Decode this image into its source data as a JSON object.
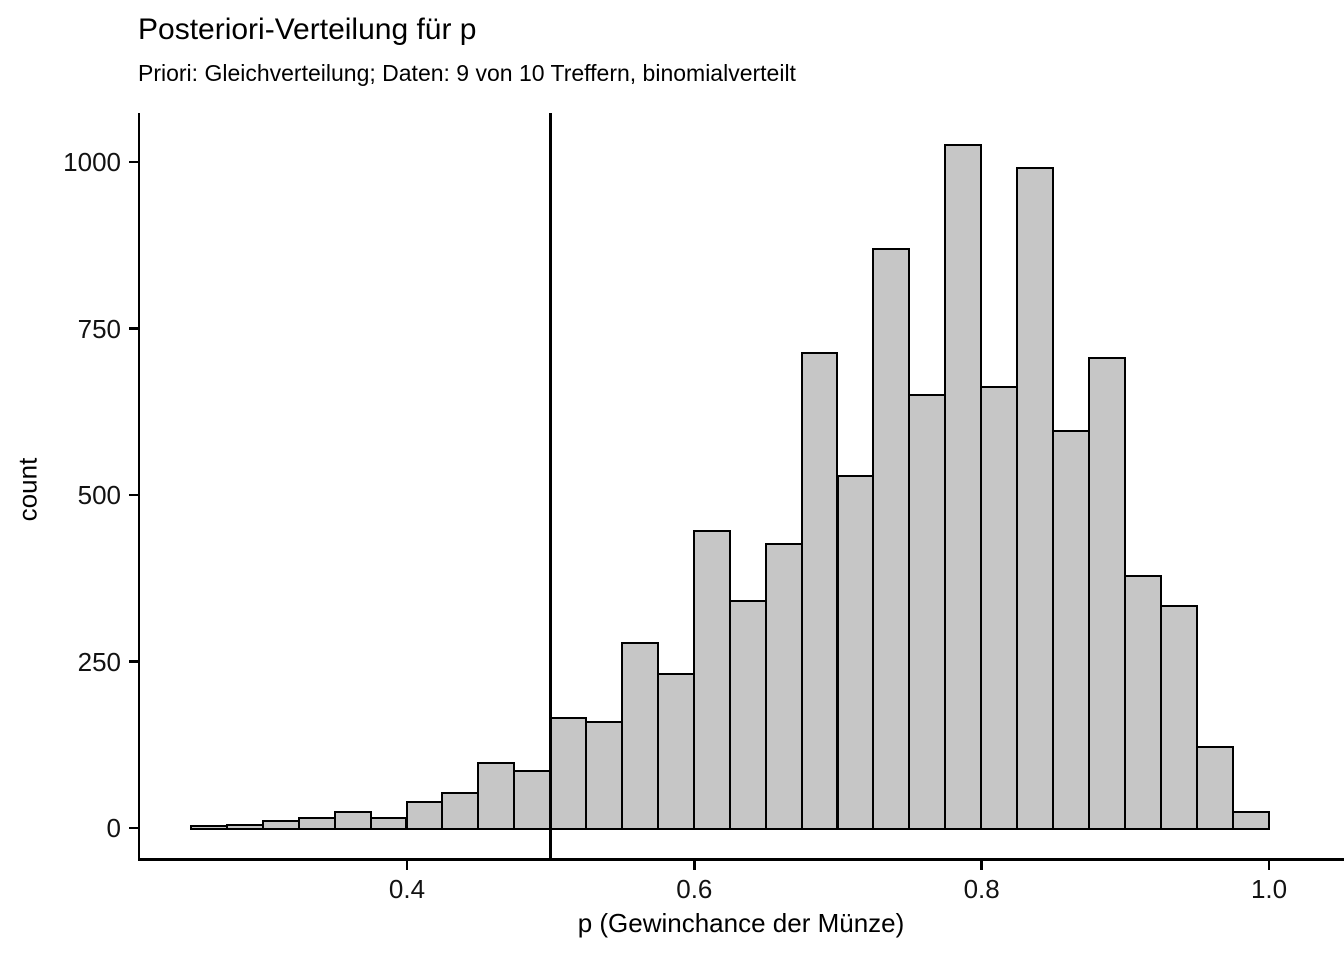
{
  "figure": {
    "title": "Posteriori-Verteilung für p",
    "subtitle": "Priori: Gleichverteilung; Daten: 9 von 10 Treffern, binomialverteilt"
  },
  "chart_data": {
    "type": "histogram",
    "title": "Posteriori-Verteilung für p",
    "subtitle": "Priori: Gleichverteilung; Daten: 9 von 10 Treffern, binomialverteilt",
    "xlabel": "p (Gewinchance der Münze)",
    "ylabel": "count",
    "bin_start": 0.25,
    "binwidth": 0.025,
    "counts": [
      2,
      3,
      9,
      13,
      22,
      13,
      37,
      51,
      96,
      84,
      164,
      158,
      277,
      230,
      444,
      339,
      425,
      711,
      527,
      868,
      649,
      1024,
      660,
      990,
      595,
      704,
      377,
      332,
      120,
      22
    ],
    "vline_x": 0.5,
    "x_ticks": [
      0.4,
      0.6,
      0.8,
      1.0
    ],
    "x_tick_labels": [
      "0.4",
      "0.6",
      "0.8",
      "1.0"
    ],
    "y_ticks": [
      0,
      250,
      500,
      750,
      1000
    ],
    "y_tick_labels": [
      "0",
      "250",
      "500",
      "750",
      "1000"
    ],
    "xlim": [
      0.2125,
      1.0525
    ],
    "ylim": [
      0,
      1070
    ],
    "grid": false,
    "legend_position": "none",
    "bar_fill": "#c6c6c6",
    "bar_outline": "#000000",
    "axis_color": "#000000",
    "tick_label_color": "#121212"
  }
}
